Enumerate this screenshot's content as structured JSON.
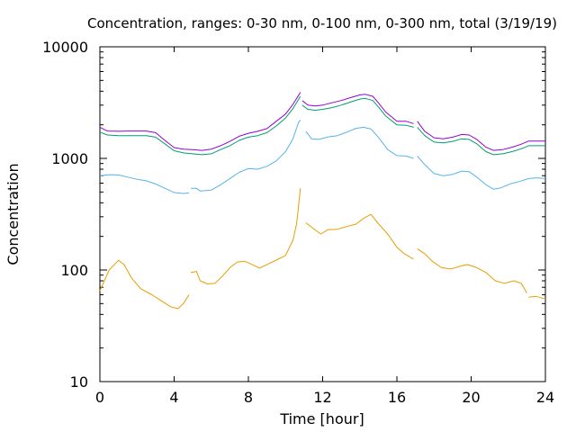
{
  "chart_data": {
    "type": "line",
    "title": "Concentration, ranges: 0-30 nm, 0-100 nm, 0-300 nm, total (3/19/19)",
    "xlabel": "Time [hour]",
    "ylabel": "Concentration",
    "xlim": [
      0,
      24
    ],
    "ylim": [
      10,
      10000
    ],
    "yscale": "log",
    "grid": false,
    "legend": "none",
    "x_ticks": [
      0,
      4,
      8,
      12,
      16,
      20,
      24
    ],
    "x_tick_labels": [
      "0",
      "4",
      "8",
      "12",
      "16",
      "20",
      "24"
    ],
    "y_ticks": [
      10,
      100,
      1000,
      10000
    ],
    "y_tick_labels": [
      "10",
      "100",
      "1000",
      "10000"
    ],
    "series": [
      {
        "color": "#e69f00",
        "segments": [
          [
            [
              0,
              65
            ],
            [
              0.5,
              100
            ],
            [
              1,
              122
            ],
            [
              1.3,
              112
            ],
            [
              1.7,
              85
            ],
            [
              2.2,
              68
            ],
            [
              2.8,
              60
            ],
            [
              3.3,
              53
            ],
            [
              3.8,
              47
            ],
            [
              4.2,
              45
            ],
            [
              4.5,
              50
            ],
            [
              4.8,
              60
            ]
          ],
          [
            [
              4.9,
              95
            ],
            [
              5.2,
              97
            ],
            [
              5.4,
              80
            ],
            [
              5.8,
              75
            ],
            [
              6.2,
              76
            ],
            [
              6.6,
              88
            ],
            [
              7,
              105
            ],
            [
              7.4,
              118
            ],
            [
              7.8,
              120
            ],
            [
              8.2,
              112
            ],
            [
              8.6,
              104
            ],
            [
              9,
              112
            ],
            [
              9.6,
              125
            ],
            [
              10,
              135
            ],
            [
              10.4,
              185
            ],
            [
              10.6,
              260
            ],
            [
              10.8,
              540
            ]
          ],
          [
            [
              11.1,
              265
            ],
            [
              11.5,
              235
            ],
            [
              11.9,
              210
            ],
            [
              12.3,
              230
            ],
            [
              12.8,
              232
            ],
            [
              13.3,
              245
            ],
            [
              13.8,
              258
            ],
            [
              14.2,
              290
            ],
            [
              14.6,
              315
            ],
            [
              15,
              260
            ],
            [
              15.5,
              210
            ],
            [
              16,
              160
            ],
            [
              16.4,
              140
            ],
            [
              16.9,
              125
            ]
          ],
          [
            [
              17.1,
              155
            ],
            [
              17.5,
              140
            ],
            [
              17.9,
              120
            ],
            [
              18.4,
              105
            ],
            [
              18.9,
              102
            ],
            [
              19.4,
              108
            ],
            [
              19.8,
              112
            ],
            [
              20.3,
              105
            ],
            [
              20.8,
              95
            ],
            [
              21.3,
              80
            ],
            [
              21.8,
              76
            ],
            [
              22.3,
              80
            ],
            [
              22.7,
              76
            ],
            [
              23,
              62
            ]
          ],
          [
            [
              23.1,
              57
            ],
            [
              23.5,
              58
            ],
            [
              24,
              55
            ]
          ]
        ]
      },
      {
        "color": "#56b4e9",
        "segments": [
          [
            [
              0,
              700
            ],
            [
              0.5,
              715
            ],
            [
              1,
              710
            ],
            [
              1.5,
              680
            ],
            [
              2,
              650
            ],
            [
              2.5,
              630
            ],
            [
              3,
              590
            ],
            [
              3.5,
              540
            ],
            [
              4,
              495
            ],
            [
              4.5,
              485
            ],
            [
              4.8,
              490
            ]
          ],
          [
            [
              4.9,
              540
            ],
            [
              5.2,
              540
            ],
            [
              5.4,
              510
            ],
            [
              6,
              520
            ],
            [
              6.5,
              580
            ],
            [
              7,
              660
            ],
            [
              7.5,
              750
            ],
            [
              8,
              810
            ],
            [
              8.5,
              800
            ],
            [
              9,
              850
            ],
            [
              9.5,
              950
            ],
            [
              10,
              1150
            ],
            [
              10.4,
              1500
            ],
            [
              10.7,
              2100
            ],
            [
              10.8,
              2200
            ]
          ],
          [
            [
              11.1,
              1750
            ],
            [
              11.4,
              1500
            ],
            [
              11.8,
              1480
            ],
            [
              12.3,
              1560
            ],
            [
              12.8,
              1600
            ],
            [
              13.3,
              1720
            ],
            [
              13.8,
              1860
            ],
            [
              14.2,
              1900
            ],
            [
              14.6,
              1840
            ],
            [
              15,
              1550
            ],
            [
              15.5,
              1200
            ],
            [
              16,
              1060
            ],
            [
              16.5,
              1050
            ],
            [
              16.9,
              1000
            ]
          ],
          [
            [
              17.1,
              1050
            ],
            [
              17.5,
              880
            ],
            [
              18,
              730
            ],
            [
              18.5,
              700
            ],
            [
              19,
              720
            ],
            [
              19.5,
              770
            ],
            [
              19.9,
              760
            ],
            [
              20.3,
              680
            ],
            [
              20.8,
              580
            ],
            [
              21.2,
              530
            ],
            [
              21.6,
              545
            ],
            [
              22.1,
              590
            ],
            [
              22.6,
              620
            ],
            [
              23.1,
              660
            ],
            [
              23.5,
              670
            ],
            [
              24,
              660
            ]
          ]
        ]
      },
      {
        "color": "#009e73",
        "segments": [
          [
            [
              0,
              1720
            ],
            [
              0.4,
              1620
            ],
            [
              1,
              1600
            ],
            [
              1.5,
              1600
            ],
            [
              2,
              1600
            ],
            [
              2.5,
              1600
            ],
            [
              3,
              1550
            ],
            [
              3.5,
              1350
            ],
            [
              4,
              1170
            ],
            [
              4.5,
              1120
            ],
            [
              5,
              1100
            ],
            [
              5.5,
              1080
            ],
            [
              6,
              1100
            ],
            [
              6.5,
              1200
            ],
            [
              7,
              1300
            ],
            [
              7.5,
              1450
            ],
            [
              8,
              1550
            ],
            [
              8.5,
              1600
            ],
            [
              9,
              1700
            ],
            [
              9.5,
              1950
            ],
            [
              10,
              2300
            ],
            [
              10.4,
              2800
            ],
            [
              10.8,
              3600
            ]
          ],
          [
            [
              10.9,
              3000
            ],
            [
              11.2,
              2750
            ],
            [
              11.6,
              2700
            ],
            [
              12,
              2750
            ],
            [
              12.5,
              2850
            ],
            [
              13,
              3000
            ],
            [
              13.5,
              3200
            ],
            [
              14,
              3400
            ],
            [
              14.3,
              3450
            ],
            [
              14.7,
              3300
            ],
            [
              15,
              2900
            ],
            [
              15.4,
              2400
            ],
            [
              16,
              2000
            ],
            [
              16.5,
              1980
            ],
            [
              16.9,
              1900
            ]
          ],
          [
            [
              17.1,
              1900
            ],
            [
              17.5,
              1600
            ],
            [
              18,
              1400
            ],
            [
              18.5,
              1380
            ],
            [
              19,
              1420
            ],
            [
              19.5,
              1500
            ],
            [
              19.9,
              1480
            ],
            [
              20.3,
              1350
            ],
            [
              20.8,
              1150
            ],
            [
              21.2,
              1080
            ],
            [
              21.7,
              1100
            ],
            [
              22.2,
              1150
            ],
            [
              22.7,
              1220
            ],
            [
              23.1,
              1300
            ],
            [
              23.5,
              1300
            ],
            [
              24,
              1300
            ]
          ]
        ]
      },
      {
        "color": "#9400d3",
        "segments": [
          [
            [
              0,
              1900
            ],
            [
              0.4,
              1760
            ],
            [
              1,
              1750
            ],
            [
              1.5,
              1760
            ],
            [
              2,
              1760
            ],
            [
              2.5,
              1760
            ],
            [
              3,
              1700
            ],
            [
              3.5,
              1450
            ],
            [
              4,
              1250
            ],
            [
              4.5,
              1210
            ],
            [
              5,
              1200
            ],
            [
              5.5,
              1180
            ],
            [
              6,
              1210
            ],
            [
              6.5,
              1300
            ],
            [
              7,
              1420
            ],
            [
              7.5,
              1580
            ],
            [
              8,
              1680
            ],
            [
              8.5,
              1750
            ],
            [
              9,
              1850
            ],
            [
              9.5,
              2150
            ],
            [
              10,
              2500
            ],
            [
              10.4,
              3050
            ],
            [
              10.8,
              3900
            ]
          ],
          [
            [
              10.9,
              3300
            ],
            [
              11.2,
              3000
            ],
            [
              11.6,
              2950
            ],
            [
              12,
              3000
            ],
            [
              12.5,
              3150
            ],
            [
              13,
              3300
            ],
            [
              13.5,
              3500
            ],
            [
              14,
              3700
            ],
            [
              14.3,
              3750
            ],
            [
              14.7,
              3600
            ],
            [
              15,
              3150
            ],
            [
              15.4,
              2600
            ],
            [
              16,
              2150
            ],
            [
              16.5,
              2150
            ],
            [
              16.9,
              2050
            ]
          ],
          [
            [
              17.1,
              2150
            ],
            [
              17.5,
              1750
            ],
            [
              18,
              1530
            ],
            [
              18.5,
              1500
            ],
            [
              19,
              1550
            ],
            [
              19.5,
              1640
            ],
            [
              19.9,
              1620
            ],
            [
              20.3,
              1480
            ],
            [
              20.8,
              1260
            ],
            [
              21.2,
              1180
            ],
            [
              21.7,
              1200
            ],
            [
              22.2,
              1260
            ],
            [
              22.7,
              1340
            ],
            [
              23.1,
              1430
            ],
            [
              23.5,
              1430
            ],
            [
              24,
              1430
            ]
          ]
        ]
      }
    ]
  }
}
